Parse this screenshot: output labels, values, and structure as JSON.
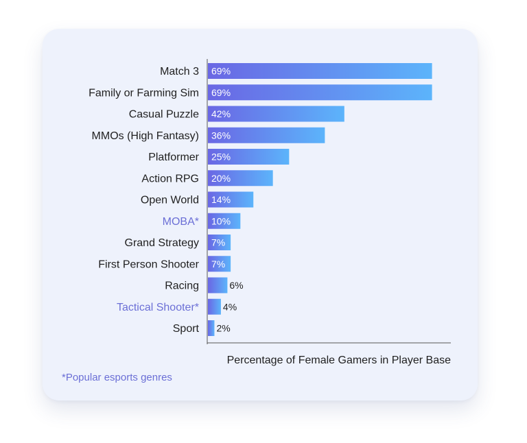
{
  "chart_data": {
    "type": "bar",
    "orientation": "horizontal",
    "categories": [
      "Match 3",
      "Family or Farming Sim",
      "Casual Puzzle",
      "MMOs (High Fantasy)",
      "Platformer",
      "Action RPG",
      "Open World",
      "MOBA*",
      "Grand Strategy",
      "First Person Shooter",
      "Racing",
      "Tactical Shooter*",
      "Sport"
    ],
    "values": [
      69,
      69,
      42,
      36,
      25,
      20,
      14,
      10,
      7,
      7,
      6,
      4,
      2
    ],
    "value_labels": [
      "69%",
      "69%",
      "42%",
      "36%",
      "25%",
      "20%",
      "14%",
      "10%",
      "7%",
      "7%",
      "6%",
      "4%",
      "2%"
    ],
    "highlighted_categories": [
      "MOBA*",
      "Tactical Shooter*"
    ],
    "xlabel": "Percentage of Female Gamers in Player Base",
    "xlim": [
      0,
      75
    ],
    "grid": false,
    "colors": {
      "bar_gradient_start": "#6a67e4",
      "bar_gradient_end": "#5cb4fb",
      "highlight_text": "#6b6fd6",
      "card_background": "#eef2fc"
    }
  },
  "footnote": "*Popular esports genres"
}
